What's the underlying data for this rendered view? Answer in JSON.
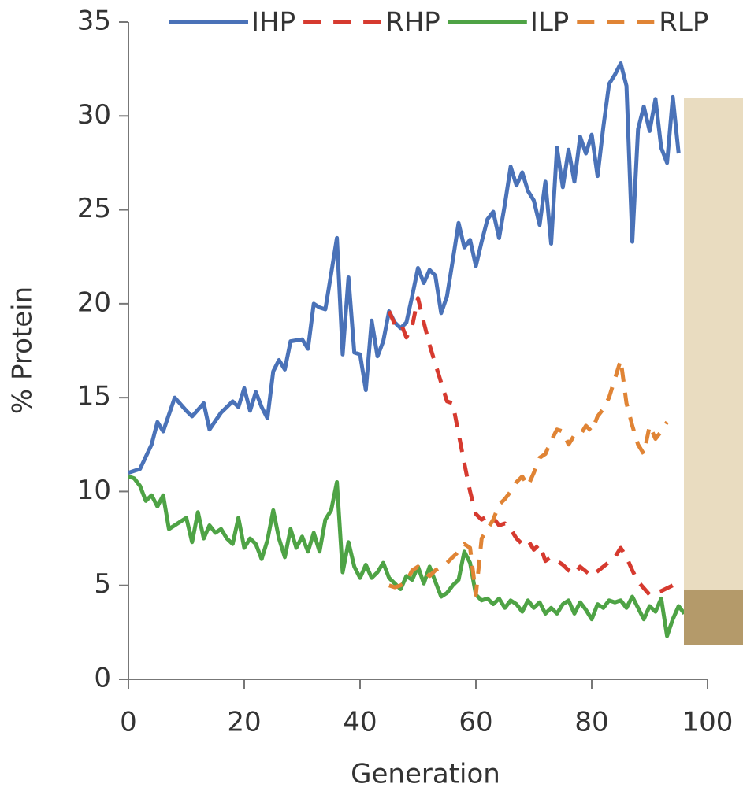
{
  "chart_data": {
    "type": "line",
    "x_label": "Generation",
    "y_label": "% Protein",
    "xlim": [
      0,
      100
    ],
    "xticks": [
      0,
      20,
      40,
      60,
      80,
      100
    ],
    "ylim": [
      0,
      35
    ],
    "yticks": [
      0,
      5,
      10,
      15,
      20,
      25,
      30,
      35
    ],
    "grid": false,
    "legend": "top",
    "series": [
      {
        "name": "IHP",
        "color": "#4a72b8",
        "dash": false,
        "x": [
          0,
          2,
          4,
          5,
          6,
          8,
          10,
          11,
          13,
          14,
          16,
          18,
          19,
          20,
          21,
          22,
          23,
          24,
          25,
          26,
          27,
          28,
          30,
          31,
          32,
          33,
          34,
          35,
          36,
          37,
          38,
          39,
          40,
          41,
          42,
          43,
          44,
          45,
          46,
          47,
          48,
          49,
          50,
          51,
          52,
          53,
          54,
          55,
          56,
          57,
          58,
          59,
          60,
          61,
          62,
          63,
          64,
          65,
          66,
          67,
          68,
          69,
          70,
          71,
          72,
          73,
          74,
          75,
          76,
          77,
          78,
          79,
          80,
          81,
          82,
          83,
          84,
          85,
          86,
          87,
          88,
          89,
          90,
          91,
          92,
          93,
          94,
          95
        ],
        "values": [
          11,
          11.2,
          12.5,
          13.7,
          13.2,
          15,
          14.3,
          14,
          14.7,
          13.3,
          14.2,
          14.8,
          14.5,
          15.5,
          14.3,
          15.3,
          14.5,
          13.9,
          16.4,
          17,
          16.5,
          18,
          18.1,
          17.6,
          20,
          19.8,
          19.7,
          21.6,
          23.5,
          17.3,
          21.4,
          17.4,
          17.3,
          15.4,
          19.1,
          17.2,
          18,
          19.6,
          19,
          18.7,
          19,
          20.4,
          21.9,
          21.1,
          21.8,
          21.5,
          19.5,
          20.4,
          22.3,
          24.3,
          23,
          23.4,
          22,
          23.3,
          24.5,
          24.9,
          23.5,
          25.3,
          27.3,
          26.3,
          27,
          26,
          25.5,
          24.2,
          26.5,
          23.2,
          28.3,
          26.2,
          28.2,
          26.5,
          28.9,
          28,
          29,
          26.8,
          29.4,
          31.7,
          32.2,
          32.8,
          31.6,
          23.3,
          29.3,
          30.5,
          29.2,
          30.9,
          28.3,
          27.5,
          31,
          28
        ]
      },
      {
        "name": "RHP",
        "color": "#d63a2f",
        "dash": true,
        "x": [
          45,
          46,
          47,
          48,
          49,
          50,
          51,
          52,
          53,
          55,
          56,
          58,
          59,
          60,
          61,
          62,
          63,
          64,
          65,
          66,
          67,
          68,
          69,
          70,
          71,
          72,
          73,
          75,
          76,
          77,
          78,
          80,
          82,
          84,
          85,
          86,
          87,
          88,
          90,
          92,
          94
        ],
        "values": [
          19.6,
          18.9,
          19,
          18.2,
          18.8,
          20.3,
          19,
          17.8,
          16.8,
          14.8,
          14.7,
          11.5,
          10,
          8.8,
          8.5,
          8.7,
          8.6,
          8.2,
          8.3,
          8,
          7.5,
          7.2,
          7.4,
          6.9,
          7.2,
          6.3,
          6.5,
          6.1,
          5.8,
          5.6,
          6,
          5.5,
          6,
          6.5,
          7,
          6.5,
          5.8,
          5.2,
          4.5,
          4.7,
          5
        ]
      },
      {
        "name": "ILP",
        "color": "#4ea345",
        "dash": false,
        "x": [
          0,
          1,
          2,
          3,
          4,
          5,
          6,
          7,
          8,
          9,
          10,
          11,
          12,
          13,
          14,
          15,
          16,
          17,
          18,
          19,
          20,
          21,
          22,
          23,
          24,
          25,
          26,
          27,
          28,
          29,
          30,
          31,
          32,
          33,
          34,
          35,
          36,
          37,
          38,
          39,
          40,
          41,
          42,
          43,
          44,
          45,
          46,
          47,
          48,
          49,
          50,
          51,
          52,
          53,
          54,
          55,
          56,
          57,
          58,
          59,
          60,
          61,
          62,
          63,
          64,
          65,
          66,
          67,
          68,
          69,
          70,
          71,
          72,
          73,
          74,
          75,
          76,
          77,
          78,
          79,
          80,
          81,
          82,
          83,
          84,
          85,
          86,
          87,
          88,
          89,
          90,
          91,
          92,
          93,
          94,
          95,
          96
        ],
        "values": [
          10.8,
          10.7,
          10.3,
          9.5,
          9.8,
          9.2,
          9.8,
          8,
          8.2,
          8.4,
          8.6,
          7.3,
          8.9,
          7.5,
          8.2,
          7.8,
          8,
          7.5,
          7.2,
          8.6,
          7,
          7.5,
          7.2,
          6.4,
          7.4,
          9,
          7.5,
          6.5,
          8,
          7,
          7.6,
          6.8,
          7.8,
          6.8,
          8.5,
          9,
          10.5,
          5.7,
          7.3,
          6,
          5.4,
          6.1,
          5.4,
          5.7,
          6.2,
          5.4,
          5.1,
          4.8,
          5.5,
          5.3,
          6,
          5.1,
          6,
          5.2,
          4.4,
          4.6,
          5,
          5.3,
          6.8,
          6.2,
          4.5,
          4.2,
          4.3,
          4,
          4.3,
          3.8,
          4.2,
          4,
          3.6,
          4.2,
          3.8,
          4.1,
          3.5,
          3.8,
          3.5,
          4,
          4.2,
          3.5,
          4.1,
          3.7,
          3.2,
          4,
          3.8,
          4.2,
          4.1,
          4.2,
          3.8,
          4.4,
          3.8,
          3.2,
          3.9,
          3.6,
          4.3,
          2.3,
          3.2,
          3.9,
          3.5
        ]
      },
      {
        "name": "RLP",
        "color": "#e08435",
        "dash": true,
        "x": [
          45,
          46,
          47,
          48,
          49,
          50,
          52,
          53,
          55,
          56,
          57,
          58,
          59,
          60,
          61,
          62,
          63,
          64,
          65,
          66,
          67,
          68,
          69,
          70,
          71,
          72,
          73,
          74,
          75,
          76,
          77,
          78,
          79,
          80,
          81,
          82,
          83,
          84,
          85,
          86,
          87,
          88,
          89,
          90,
          91,
          92,
          93
        ],
        "values": [
          5,
          4.9,
          5,
          5.2,
          5.8,
          6,
          5.5,
          5.8,
          6.2,
          6.5,
          6.8,
          7.2,
          7,
          4.5,
          7.5,
          8,
          8.5,
          9.3,
          9.6,
          10,
          10.5,
          10.8,
          10.3,
          11,
          11.8,
          12,
          12.7,
          13.3,
          13.2,
          12.5,
          13,
          13,
          13.5,
          13.2,
          14,
          14.4,
          15,
          16,
          17,
          14.7,
          13.5,
          12.5,
          12,
          13.5,
          12.8,
          13.2,
          13.7
        ]
      }
    ]
  }
}
